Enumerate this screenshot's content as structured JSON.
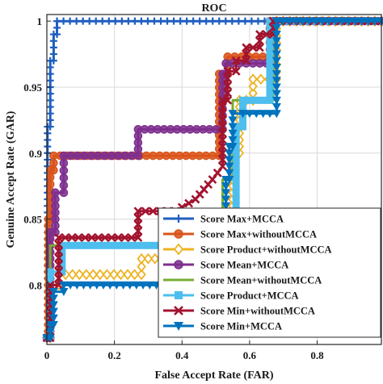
{
  "chart_data": {
    "type": "line",
    "title": "ROC",
    "xlabel": "False Accept Rate (FAR)",
    "ylabel": "Genuine Accept Rate (GAR)",
    "xlim": [
      0,
      0.99
    ],
    "ylim": [
      0.755,
      1.005
    ],
    "xticks": [
      0,
      0.2,
      0.4,
      0.6,
      0.8
    ],
    "xtick_labels": [
      "0",
      "0.2",
      "0.4",
      "0.6",
      "0.8"
    ],
    "yticks": [
      0.8,
      0.85,
      0.9,
      0.95,
      1
    ],
    "ytick_labels": [
      "0.8",
      "0.85",
      "0.9",
      "0.95",
      "1"
    ],
    "grid": true,
    "legend_position": "bottom-right",
    "series": [
      {
        "name": "Score Max+MCCA",
        "color": "#1f5fbf",
        "marker": "plus",
        "x": [
          0,
          0.002,
          0.002,
          0.01,
          0.01,
          0.02,
          0.02,
          0.03,
          0.03,
          0.99
        ],
        "y": [
          0.76,
          0.76,
          0.92,
          0.92,
          0.97,
          0.97,
          0.99,
          0.99,
          1.0,
          1.0
        ]
      },
      {
        "name": "Score Max+withoutMCCA",
        "color": "#d9541a",
        "marker": "circle",
        "x": [
          0,
          0.005,
          0.005,
          0.01,
          0.01,
          0.02,
          0.02,
          0.51,
          0.51,
          0.535,
          0.535,
          0.66,
          0.66,
          0.99
        ],
        "y": [
          0.76,
          0.76,
          0.85,
          0.85,
          0.887,
          0.887,
          0.898,
          0.898,
          0.96,
          0.96,
          0.973,
          0.973,
          1.0,
          1.0
        ]
      },
      {
        "name": "Score Product+withoutMCCA",
        "color": "#eeb220",
        "marker": "diamond",
        "x": [
          0,
          0.01,
          0.01,
          0.035,
          0.035,
          0.28,
          0.28,
          0.5,
          0.5,
          0.55,
          0.55,
          0.57,
          0.57,
          0.61,
          0.61,
          0.68,
          0.68,
          0.99
        ],
        "y": [
          0.76,
          0.76,
          0.8,
          0.8,
          0.808,
          0.808,
          0.82,
          0.82,
          0.84,
          0.84,
          0.9,
          0.9,
          0.94,
          0.94,
          0.956,
          0.956,
          1.0,
          1.0
        ]
      },
      {
        "name": "Score Mean+MCCA",
        "color": "#7e2f8e",
        "marker": "circle",
        "x": [
          0,
          0.01,
          0.01,
          0.025,
          0.025,
          0.05,
          0.05,
          0.27,
          0.27,
          0.52,
          0.52,
          0.53,
          0.53,
          0.67,
          0.67,
          0.99
        ],
        "y": [
          0.76,
          0.76,
          0.84,
          0.84,
          0.87,
          0.87,
          0.898,
          0.898,
          0.918,
          0.918,
          0.96,
          0.96,
          0.968,
          0.968,
          1.0,
          1.0
        ]
      },
      {
        "name": "Score Mean+withoutMCCA",
        "color": "#77ac30",
        "marker": "none",
        "x": [
          0,
          0.01,
          0.01,
          0.52,
          0.52,
          0.55,
          0.55,
          0.67,
          0.67,
          0.99
        ],
        "y": [
          0.76,
          0.76,
          0.83,
          0.83,
          0.88,
          0.88,
          0.94,
          0.94,
          1.0,
          1.0
        ]
      },
      {
        "name": "Score Product+MCCA",
        "color": "#4dbeee",
        "marker": "square",
        "x": [
          0,
          0.01,
          0.01,
          0.045,
          0.045,
          0.5,
          0.5,
          0.56,
          0.56,
          0.58,
          0.58,
          0.66,
          0.66,
          0.99
        ],
        "y": [
          0.76,
          0.76,
          0.81,
          0.81,
          0.83,
          0.83,
          0.84,
          0.84,
          0.92,
          0.92,
          0.94,
          0.94,
          1.0,
          1.0
        ]
      },
      {
        "name": "Score Min+withoutMCCA",
        "color": "#a2142f",
        "marker": "x",
        "x": [
          0,
          0.01,
          0.01,
          0.035,
          0.035,
          0.27,
          0.27,
          0.38,
          0.44,
          0.49,
          0.52,
          0.52,
          0.535,
          0.535,
          0.56,
          0.56,
          0.59,
          0.59,
          0.63,
          0.63,
          0.67,
          0.67,
          0.99
        ],
        "y": [
          0.76,
          0.76,
          0.8,
          0.8,
          0.836,
          0.836,
          0.856,
          0.856,
          0.865,
          0.88,
          0.89,
          0.94,
          0.94,
          0.962,
          0.962,
          0.97,
          0.97,
          0.98,
          0.98,
          0.99,
          0.99,
          1.0,
          1.0
        ]
      },
      {
        "name": "Score Min+MCCA",
        "color": "#0072bd",
        "marker": "triangle-down",
        "x": [
          0,
          0.01,
          0.01,
          0.02,
          0.02,
          0.05,
          0.05,
          0.5,
          0.5,
          0.515,
          0.515,
          0.53,
          0.53,
          0.54,
          0.54,
          0.55,
          0.55,
          0.58,
          0.58,
          0.68,
          0.68,
          0.99
        ],
        "y": [
          0.76,
          0.76,
          0.77,
          0.77,
          0.795,
          0.795,
          0.8,
          0.8,
          0.81,
          0.81,
          0.85,
          0.85,
          0.88,
          0.88,
          0.905,
          0.905,
          0.93,
          0.93,
          0.93,
          0.93,
          1.0,
          1.0
        ]
      }
    ]
  }
}
